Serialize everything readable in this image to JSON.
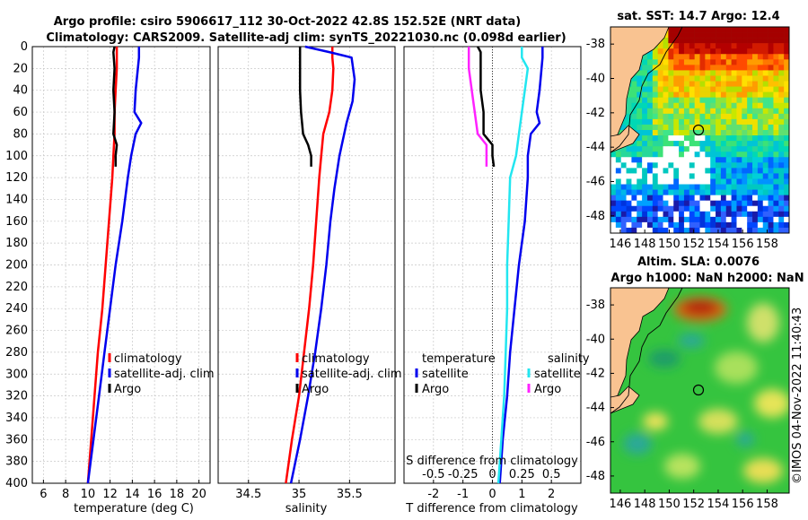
{
  "header": {
    "line1": "Argo profile: csiro 5906617_112 30-Oct-2022 42.8S 152.52E (NRT data)",
    "line2": "Climatology: CARS2009. Satellite-adj clim: synTS_20221030.nc (0.098d earlier)"
  },
  "colors": {
    "climatology": "#ff0000",
    "satellite": "#0000ee",
    "argo": "#000000",
    "satellite_s": "#22e6f0",
    "argo_s": "#ff22ff"
  },
  "chart_data": [
    {
      "type": "line",
      "name": "temperature-profile",
      "title": "",
      "xlabel": "temperature (deg C)",
      "ylabel": "",
      "xlim": [
        5,
        21
      ],
      "ylim": [
        400,
        0
      ],
      "xticks": [
        "6",
        "8",
        "10",
        "12",
        "14",
        "16",
        "18",
        "20"
      ],
      "xtick_values": [
        6,
        8,
        10,
        12,
        14,
        16,
        18,
        20
      ],
      "yticks": [
        "0",
        "20",
        "40",
        "60",
        "80",
        "100",
        "120",
        "140",
        "160",
        "180",
        "200",
        "220",
        "240",
        "260",
        "280",
        "300",
        "320",
        "340",
        "360",
        "380",
        "400"
      ],
      "ytick_values": [
        0,
        20,
        40,
        60,
        80,
        100,
        120,
        140,
        160,
        180,
        200,
        220,
        240,
        260,
        280,
        300,
        320,
        340,
        360,
        380,
        400
      ],
      "legend": [
        "climatology",
        "satellite-adj. clim",
        "Argo"
      ],
      "series": [
        {
          "name": "climatology",
          "depth": [
            0,
            20,
            40,
            60,
            80,
            100,
            120,
            160,
            200,
            240,
            280,
            320,
            360,
            400
          ],
          "values": [
            12.6,
            12.6,
            12.5,
            12.4,
            12.4,
            12.3,
            12.2,
            11.9,
            11.6,
            11.3,
            10.9,
            10.6,
            10.3,
            10.0
          ]
        },
        {
          "name": "satellite-adj. clim",
          "depth": [
            0,
            10,
            40,
            60,
            70,
            80,
            100,
            120,
            160,
            200,
            240,
            280,
            320,
            360,
            400
          ],
          "values": [
            14.6,
            14.6,
            14.3,
            14.2,
            14.8,
            14.3,
            13.9,
            13.6,
            13.1,
            12.5,
            12.0,
            11.5,
            11.0,
            10.5,
            10.0
          ]
        },
        {
          "name": "Argo",
          "depth": [
            0,
            5,
            20,
            40,
            60,
            80,
            90,
            100,
            110
          ],
          "values": [
            12.4,
            12.3,
            12.4,
            12.3,
            12.4,
            12.3,
            12.6,
            12.5,
            12.5
          ]
        }
      ]
    },
    {
      "type": "line",
      "name": "salinity-profile",
      "xlabel": "salinity",
      "xlim": [
        34.2,
        35.95
      ],
      "ylim": [
        400,
        0
      ],
      "xticks": [
        "34.5",
        "35",
        "35.5"
      ],
      "xtick_values": [
        34.5,
        35.0,
        35.5
      ],
      "legend": [
        "climatology",
        "satellite-adj. clim",
        "Argo"
      ],
      "series": [
        {
          "name": "climatology",
          "depth": [
            0,
            10,
            20,
            40,
            60,
            80,
            100,
            120,
            160,
            200,
            240,
            280,
            320,
            360,
            400
          ],
          "values": [
            35.33,
            35.33,
            35.34,
            35.33,
            35.3,
            35.24,
            35.22,
            35.2,
            35.17,
            35.14,
            35.1,
            35.05,
            35.0,
            34.93,
            34.87
          ]
        },
        {
          "name": "satellite-adj. clim",
          "depth": [
            0,
            5,
            10,
            30,
            50,
            70,
            100,
            130,
            160,
            200,
            240,
            280,
            320,
            360,
            400
          ],
          "values": [
            35.06,
            35.3,
            35.52,
            35.55,
            35.53,
            35.47,
            35.4,
            35.35,
            35.31,
            35.27,
            35.22,
            35.16,
            35.09,
            35.01,
            34.92
          ]
        },
        {
          "name": "Argo",
          "depth": [
            0,
            20,
            40,
            60,
            80,
            90,
            100,
            110
          ],
          "values": [
            35.01,
            35.01,
            35.01,
            35.02,
            35.04,
            35.09,
            35.12,
            35.12
          ]
        }
      ]
    },
    {
      "type": "line",
      "name": "difference-profile",
      "xlabel": "T difference from climatology",
      "xlabel2": "S difference from climatology",
      "xlim": [
        -3,
        3
      ],
      "ylim": [
        400,
        0
      ],
      "xticks": [
        "-2",
        "-1",
        "0",
        "1",
        "2"
      ],
      "xtick_values": [
        -2,
        -1,
        0,
        1,
        2
      ],
      "sticks": [
        "-0.5",
        "-0.25",
        "0",
        "0.25",
        "0.5"
      ],
      "stick_values": [
        -2,
        -1,
        0,
        1,
        2
      ],
      "legend": [
        "temperature",
        "satellite",
        "Argo",
        "salinity",
        "satellite",
        "Argo"
      ],
      "series": [
        {
          "name": "temperature satellite",
          "depth": [
            0,
            10,
            40,
            60,
            70,
            80,
            100,
            120,
            160,
            200,
            240,
            280,
            320,
            360,
            400
          ],
          "values": [
            1.7,
            1.7,
            1.6,
            1.5,
            1.6,
            1.3,
            1.2,
            1.2,
            1.1,
            0.9,
            0.75,
            0.6,
            0.5,
            0.35,
            0.25
          ]
        },
        {
          "name": "temperature Argo",
          "depth": [
            0,
            5,
            20,
            40,
            60,
            80,
            90,
            100,
            110
          ],
          "values": [
            -0.5,
            -0.4,
            -0.4,
            -0.4,
            -0.3,
            -0.3,
            0.0,
            0.0,
            0.05
          ]
        },
        {
          "name": "salinity satellite",
          "depth": [
            0,
            10,
            20,
            40,
            60,
            80,
            100,
            120,
            160,
            200,
            240,
            280,
            320,
            360,
            400
          ],
          "values": [
            1.0,
            1.0,
            1.2,
            1.1,
            1.0,
            0.9,
            0.8,
            0.6,
            0.55,
            0.5,
            0.5,
            0.45,
            0.4,
            0.3,
            0.2
          ]
        },
        {
          "name": "salinity Argo",
          "depth": [
            0,
            20,
            40,
            60,
            80,
            90,
            100,
            110
          ],
          "values": [
            -0.8,
            -0.8,
            -0.7,
            -0.6,
            -0.5,
            -0.2,
            -0.2,
            -0.2
          ]
        }
      ]
    },
    {
      "type": "heatmap",
      "name": "sst-map",
      "title": "sat. SST: 14.7 Argo: 12.4",
      "xticks": [
        "146",
        "148",
        "150",
        "152",
        "154",
        "156",
        "158"
      ],
      "yticks": [
        "-38",
        "-40",
        "-42",
        "-44",
        "-46",
        "-48"
      ],
      "xlim": [
        145.2,
        159.8
      ],
      "ylim": [
        -49,
        -37
      ],
      "marker": {
        "lon": 152.52,
        "lat": -42.8
      }
    },
    {
      "type": "heatmap",
      "name": "sla-map",
      "title": "Altim. SLA: 0.0076",
      "subtitle": "Argo h1000: NaN h2000: NaN",
      "xticks": [
        "146",
        "148",
        "150",
        "152",
        "154",
        "156",
        "158"
      ],
      "yticks": [
        "-38",
        "-40",
        "-42",
        "-44",
        "-46",
        "-48"
      ],
      "xlim": [
        145.2,
        159.8
      ],
      "ylim": [
        -49,
        -37
      ],
      "marker": {
        "lon": 152.52,
        "lat": -42.8
      }
    }
  ],
  "footer": {
    "stamp": "©IMOS 04-Nov-2022 11:40:43"
  }
}
